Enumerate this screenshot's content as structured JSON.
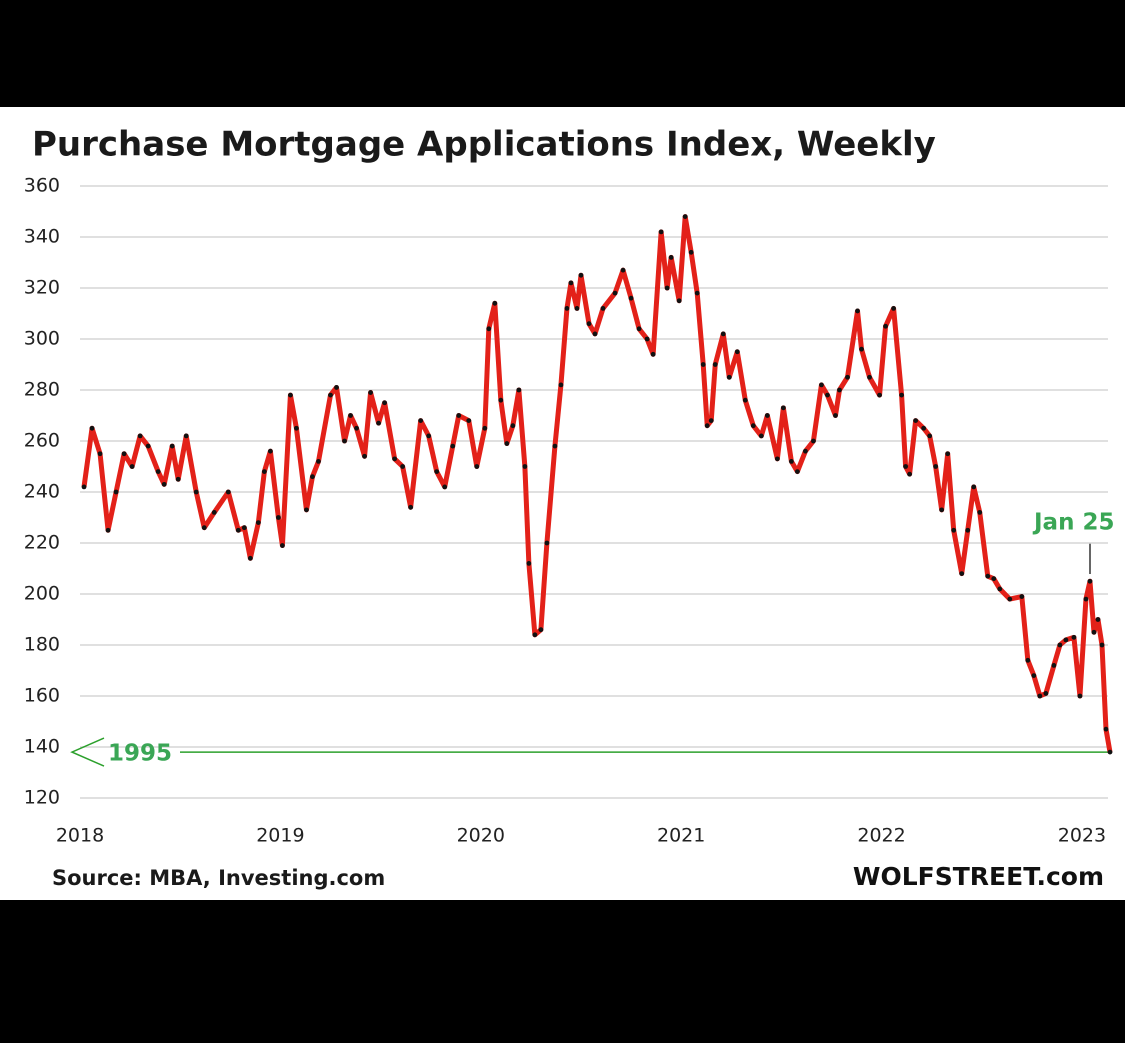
{
  "chart_data": {
    "type": "line",
    "title": "Purchase Mortgage Applications Index, Weekly",
    "source": "Source: MBA, Investing.com",
    "brand": "WOLFSTREET.com",
    "annotation": "Jan 25",
    "reference_line": {
      "value": 138,
      "label": "1995",
      "color": "#2ca02c"
    },
    "xlim": [
      2017.97,
      2023.15
    ],
    "xticks": [
      2018,
      2019,
      2020,
      2021,
      2022,
      2023
    ],
    "ylim": [
      120,
      360
    ],
    "yticks": [
      120,
      140,
      160,
      180,
      200,
      220,
      240,
      260,
      280,
      300,
      320,
      340,
      360
    ],
    "grid": true,
    "series": [
      {
        "color": "#e32119",
        "marker_color": "#111111",
        "x": [
          2018.02,
          2018.06,
          2018.1,
          2018.14,
          2018.18,
          2018.22,
          2018.26,
          2018.3,
          2018.34,
          2018.39,
          2018.42,
          2018.46,
          2018.49,
          2018.53,
          2018.58,
          2018.62,
          2018.67,
          2018.74,
          2018.79,
          2018.82,
          2018.85,
          2018.89,
          2018.92,
          2018.95,
          2018.99,
          2019.01,
          2019.05,
          2019.08,
          2019.13,
          2019.16,
          2019.19,
          2019.25,
          2019.28,
          2019.32,
          2019.35,
          2019.38,
          2019.42,
          2019.45,
          2019.49,
          2019.52,
          2019.57,
          2019.61,
          2019.65,
          2019.7,
          2019.74,
          2019.78,
          2019.82,
          2019.86,
          2019.89,
          2019.94,
          2019.98,
          2020.02,
          2020.04,
          2020.07,
          2020.1,
          2020.13,
          2020.16,
          2020.19,
          2020.22,
          2020.24,
          2020.27,
          2020.3,
          2020.33,
          2020.37,
          2020.4,
          2020.43,
          2020.45,
          2020.48,
          2020.5,
          2020.54,
          2020.57,
          2020.61,
          2020.67,
          2020.71,
          2020.75,
          2020.79,
          2020.83,
          2020.86,
          2020.9,
          2020.93,
          2020.95,
          2020.99,
          2021.02,
          2021.05,
          2021.08,
          2021.11,
          2021.13,
          2021.15,
          2021.17,
          2021.21,
          2021.24,
          2021.28,
          2021.32,
          2021.36,
          2021.4,
          2021.43,
          2021.48,
          2021.51,
          2021.55,
          2021.58,
          2021.62,
          2021.66,
          2021.7,
          2021.73,
          2021.77,
          2021.79,
          2021.83,
          2021.88,
          2021.9,
          2021.94,
          2021.99,
          2022.02,
          2022.06,
          2022.1,
          2022.12,
          2022.14,
          2022.17,
          2022.21,
          2022.24,
          2022.27,
          2022.3,
          2022.33,
          2022.36,
          2022.4,
          2022.43,
          2022.46,
          2022.49,
          2022.53,
          2022.56,
          2022.59,
          2022.64,
          2022.7,
          2022.73,
          2022.76,
          2022.79,
          2022.82,
          2022.86,
          2022.89,
          2022.92,
          2022.96,
          2022.99,
          2023.02,
          2023.04,
          2023.06,
          2023.08,
          2023.1,
          2023.12,
          2023.14
        ],
        "values": [
          242,
          265,
          255,
          225,
          240,
          255,
          250,
          262,
          258,
          248,
          243,
          258,
          245,
          262,
          240,
          226,
          232,
          240,
          225,
          226,
          214,
          228,
          248,
          256,
          230,
          219,
          278,
          265,
          233,
          246,
          252,
          278,
          281,
          260,
          270,
          265,
          254,
          279,
          267,
          275,
          253,
          250,
          234,
          268,
          262,
          248,
          242,
          258,
          270,
          268,
          250,
          265,
          304,
          314,
          276,
          259,
          266,
          280,
          250,
          212,
          184,
          186,
          220,
          258,
          282,
          312,
          322,
          312,
          325,
          306,
          302,
          312,
          318,
          327,
          316,
          304,
          300,
          294,
          342,
          320,
          332,
          315,
          348,
          334,
          318,
          290,
          266,
          268,
          290,
          302,
          285,
          295,
          276,
          266,
          262,
          270,
          253,
          273,
          252,
          248,
          256,
          260,
          282,
          278,
          270,
          280,
          285,
          311,
          296,
          285,
          278,
          305,
          312,
          278,
          250,
          247,
          268,
          265,
          262,
          250,
          233,
          255,
          225,
          208,
          225,
          242,
          232,
          207,
          206,
          202,
          198,
          199,
          174,
          168,
          160,
          161,
          172,
          180,
          182,
          183,
          160,
          198,
          205,
          185,
          190,
          180,
          147,
          138
        ]
      }
    ]
  }
}
